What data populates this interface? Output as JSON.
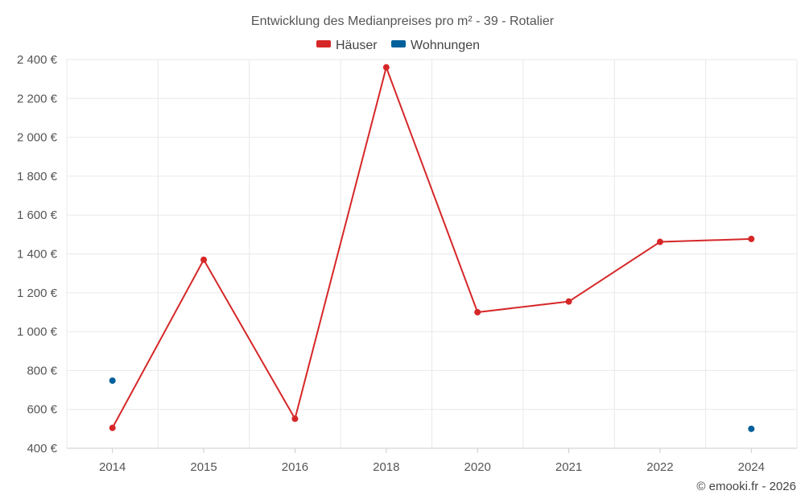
{
  "chart_data": {
    "type": "line",
    "title": "Entwicklung des Medianpreises pro m² - 39 - Rotalier",
    "categories": [
      "2014",
      "2015",
      "2016",
      "2018",
      "2020",
      "2021",
      "2022",
      "2024"
    ],
    "y_ticks": [
      "400 €",
      "600 €",
      "800 €",
      "1 000 €",
      "1 200 €",
      "1 400 €",
      "1 600 €",
      "1 800 €",
      "2 000 €",
      "2 200 €",
      "2 400 €"
    ],
    "ylim": [
      400,
      2400
    ],
    "xlabel": "",
    "ylabel": "",
    "grid": true,
    "legend_position": "top-center",
    "series": [
      {
        "name": "Häuser",
        "color": "#d62728",
        "values": [
          505,
          1370,
          552,
          2360,
          1100,
          1155,
          1462,
          1477
        ]
      },
      {
        "name": "Wohnungen",
        "color": "#00609c",
        "values": [
          748,
          null,
          null,
          null,
          null,
          null,
          null,
          500
        ]
      }
    ],
    "credit": "© emooki.fr - 2026"
  }
}
